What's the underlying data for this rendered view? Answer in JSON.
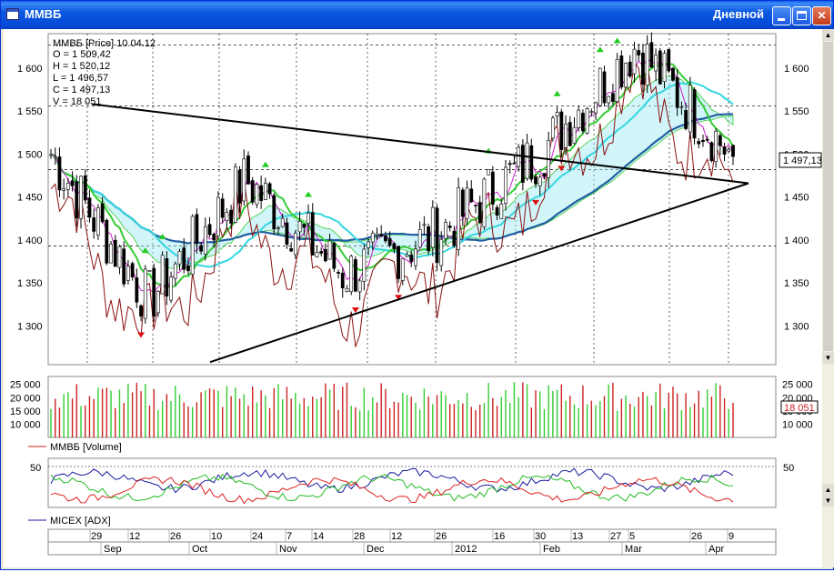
{
  "window": {
    "title": "ММВБ",
    "period": "Дневной"
  },
  "price_panel": {
    "header": "ММВБ [Price] 10.04.12",
    "ohlcv": [
      "O = 1 509,42",
      "H = 1 520,12",
      "L = 1 496,57",
      "C = 1 497,13",
      "V = 18 051"
    ],
    "y_ticks": [
      "1 600",
      "1 550",
      "1 500",
      "1 450",
      "1 400",
      "1 350",
      "1 300"
    ],
    "last_price_label": "1 497,13",
    "colors": {
      "up_candle": "#ffffff",
      "down_candle": "#000000",
      "ma_dark_blue": "#1f5fa0",
      "ma_cyan": "#33d6e0",
      "ma_green": "#33cc33",
      "cloud": "#9ae8f0",
      "buy_signal": "#22cc22",
      "sell_signal": "#dd1111"
    }
  },
  "volume_panel": {
    "y_ticks": [
      "25 000",
      "20 000",
      "15 000",
      "10 000"
    ],
    "last_value_label": "18 051",
    "legend": "ММВБ [Volume]",
    "colors": {
      "up": "#33cc33",
      "down": "#cc2222"
    }
  },
  "adx_panel": {
    "y_ticks": [
      "50"
    ],
    "legend": "MICEX [ADX]",
    "colors": {
      "adx": "#1a1aa0",
      "plus_di": "#22bb22",
      "minus_di": "#dd2222"
    }
  },
  "time_axis": {
    "days": [
      "29",
      "12",
      "26",
      "10",
      "24",
      "7",
      "14",
      "28",
      "12",
      "26",
      "16",
      "30",
      "13",
      "27",
      "5",
      "26",
      "9"
    ],
    "months": [
      "Sep",
      "Oct",
      "Nov",
      "Dec",
      "2012",
      "Feb",
      "Mar",
      "Apr"
    ]
  },
  "chart_data": {
    "type": "candlestick",
    "title": "ММВБ [Price] 10.04.12",
    "period": "Дневной",
    "last_bar": {
      "date": "10.04.12",
      "open": 1509.42,
      "high": 1520.12,
      "low": 1496.57,
      "close": 1497.13,
      "volume": 18051
    },
    "price_approx_by_month": [
      {
        "x": "Sep",
        "y": 1500
      },
      {
        "x": "Oct",
        "y": 1330
      },
      {
        "x": "Nov",
        "y": 1470
      },
      {
        "x": "Dec",
        "y": 1360
      },
      {
        "x": "2012",
        "y": 1410
      },
      {
        "x": "Feb",
        "y": 1500
      },
      {
        "x": "Mar",
        "y": 1625
      },
      {
        "x": "Apr",
        "y": 1497
      }
    ],
    "ylim": [
      1255,
      1640
    ],
    "volume_ylim": [
      5000,
      28000
    ],
    "adx_ylim": [
      0,
      60
    ],
    "grid": true,
    "legend_placement": "bottom-left"
  }
}
